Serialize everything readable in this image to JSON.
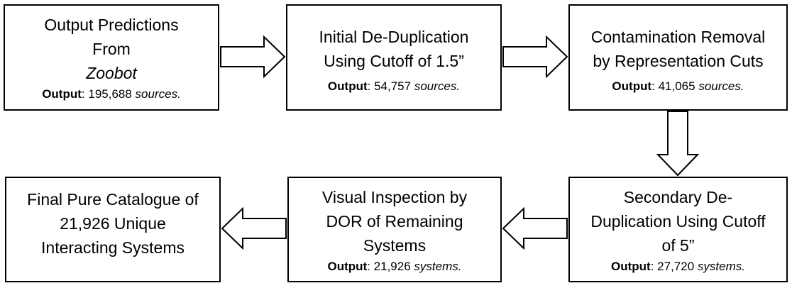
{
  "boxes": [
    {
      "title_lines": [
        "Output Predictions",
        "From"
      ],
      "title_italic": "Zoobot",
      "output_label": "Output",
      "output_value": "195,688",
      "output_unit": "sources."
    },
    {
      "title_lines": [
        "Initial De-Duplication",
        "Using Cutoff of 1.5”"
      ],
      "output_label": "Output",
      "output_value": "54,757",
      "output_unit": "sources."
    },
    {
      "title_lines": [
        "Contamination Removal",
        "by Representation Cuts"
      ],
      "output_label": "Output",
      "output_value": "41,065",
      "output_unit": "sources."
    },
    {
      "title_lines": [
        "Secondary De-",
        "Duplication Using Cutoff",
        "of 5”"
      ],
      "output_label": "Output",
      "output_value": "27,720",
      "output_unit": "systems."
    },
    {
      "title_lines": [
        "Visual Inspection by",
        "DOR of Remaining",
        "Systems"
      ],
      "output_label": "Output",
      "output_value": "21,926",
      "output_unit": "systems."
    },
    {
      "title_lines": [
        "Final Pure Catalogue of",
        "21,926 Unique",
        "Interacting Systems"
      ]
    }
  ]
}
